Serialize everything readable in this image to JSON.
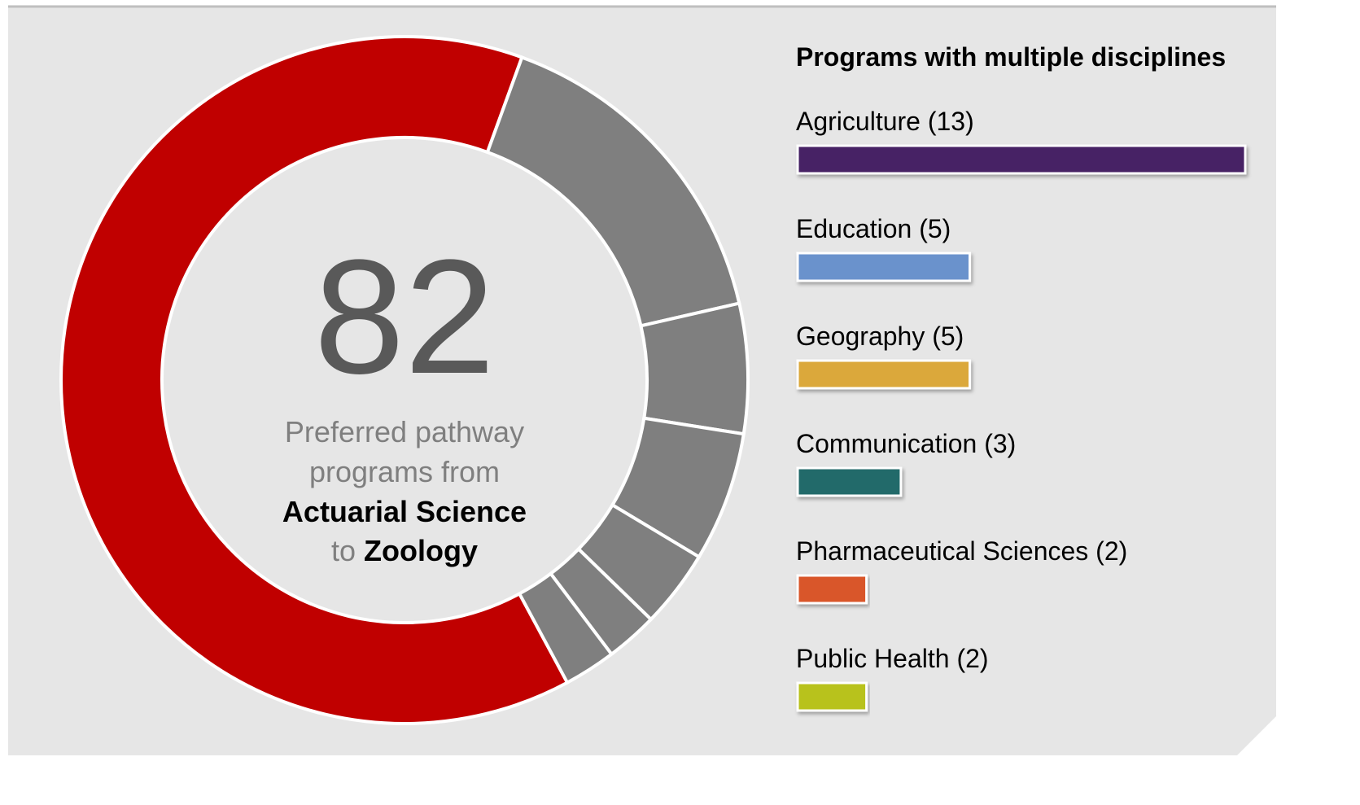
{
  "chart_data": [
    {
      "type": "donut",
      "values": [
        52,
        13,
        5,
        5,
        3,
        2,
        2
      ],
      "colors": [
        "#c00000",
        "#7f7f7f",
        "#7f7f7f",
        "#7f7f7f",
        "#7f7f7f",
        "#7f7f7f",
        "#7f7f7f"
      ],
      "total": 82,
      "center_lines": [
        "Preferred pathway",
        "programs from"
      ],
      "from_name": "Actuarial Science",
      "to_word": "to",
      "to_name": "Zoology"
    },
    {
      "type": "bar",
      "title": "Programs with multiple disciplines",
      "labels": [
        "Agriculture (13)",
        "Education (5)",
        "Geography (5)",
        "Communication (3)",
        "Pharmaceutical Sciences (2)",
        "Public Health (2)"
      ],
      "values": [
        13,
        5,
        5,
        3,
        2,
        2
      ],
      "colors": [
        "#462265",
        "#6a92cc",
        "#dba83a",
        "#246b6b",
        "#d9572a",
        "#b8c21e"
      ]
    }
  ]
}
